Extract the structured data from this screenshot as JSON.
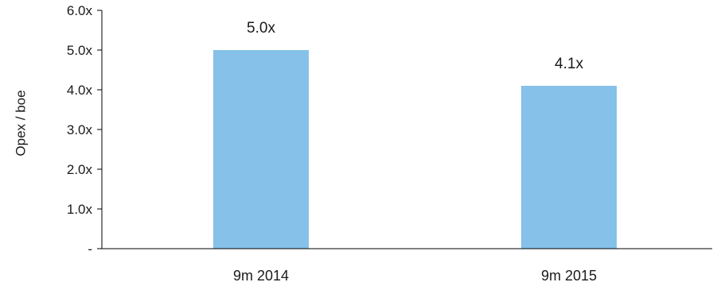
{
  "chart_data": {
    "type": "bar",
    "categories": [
      "9m 2014",
      "9m 2015"
    ],
    "values": [
      5.0,
      4.1
    ],
    "data_labels": [
      "5.0x",
      "4.1x"
    ],
    "ylabel": "Opex / boe",
    "xlabel": "",
    "ylim": [
      0,
      6
    ],
    "yticks": [
      0,
      1,
      2,
      3,
      4,
      5,
      6
    ],
    "ytick_labels": [
      "-",
      "1.0x",
      "2.0x",
      "3.0x",
      "4.0x",
      "5.0x",
      "6.0x"
    ],
    "grid": false,
    "legend": "none",
    "bar_color": "#85C1E9",
    "axis_color": "#000000"
  }
}
